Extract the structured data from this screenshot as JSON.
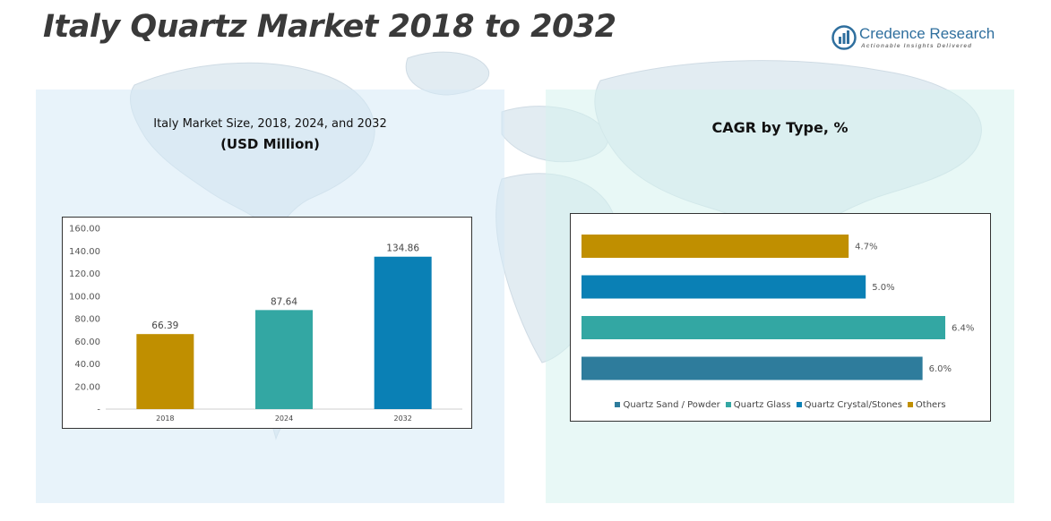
{
  "page": {
    "title": "Italy Quartz Market 2018 to 2032"
  },
  "logo": {
    "name": "Credence Research",
    "tagline": "Actionable Insights Delivered"
  },
  "left_panel": {
    "title_line1": "Italy Market Size, 2018, 2024, and 2032",
    "title_line2": "(USD Million)"
  },
  "right_panel": {
    "title": "CAGR by Type, %"
  },
  "colors": {
    "gold": "#c08f00",
    "teal": "#33a7a3",
    "blue": "#0a80b5",
    "steel": "#2e7c9c"
  },
  "chart_data": [
    {
      "type": "bar",
      "categories": [
        "2018",
        "2024",
        "2032"
      ],
      "values": [
        66.39,
        87.64,
        134.86
      ],
      "value_labels": [
        "66.39",
        "87.64",
        "134.86"
      ],
      "bar_colors": [
        "#c08f00",
        "#33a7a3",
        "#0a80b5"
      ],
      "yticks": [
        0,
        20,
        40,
        60,
        80,
        100,
        120,
        140,
        160
      ],
      "ytick_labels": [
        "-",
        "20.00",
        "40.00",
        "60.00",
        "80.00",
        "100.00",
        "120.00",
        "140.00",
        "160.00"
      ],
      "ylim": [
        0,
        160
      ],
      "grid": false,
      "title": "Italy Market Size, 2018, 2024, and 2032",
      "ylabel": "",
      "xlabel": ""
    },
    {
      "type": "bar",
      "orientation": "horizontal",
      "categories": [
        "Others",
        "Quartz Crystal/Stones",
        "Quartz Glass",
        "Quartz Sand / Powder"
      ],
      "values": [
        4.7,
        5.0,
        6.4,
        6.0
      ],
      "value_labels": [
        "4.7%",
        "5.0%",
        "6.4%",
        "6.0%"
      ],
      "bar_colors": [
        "#c08f00",
        "#0a80b5",
        "#33a7a3",
        "#2e7c9c"
      ],
      "legend": [
        "Quartz Sand / Powder",
        "Quartz Glass",
        "Quartz Crystal/Stones",
        "Others"
      ],
      "legend_colors": [
        "#2e7c9c",
        "#33a7a3",
        "#0a80b5",
        "#c08f00"
      ],
      "legend_position": "bottom",
      "xlim": [
        0,
        6.4
      ],
      "title": "CAGR by Type, %"
    }
  ]
}
